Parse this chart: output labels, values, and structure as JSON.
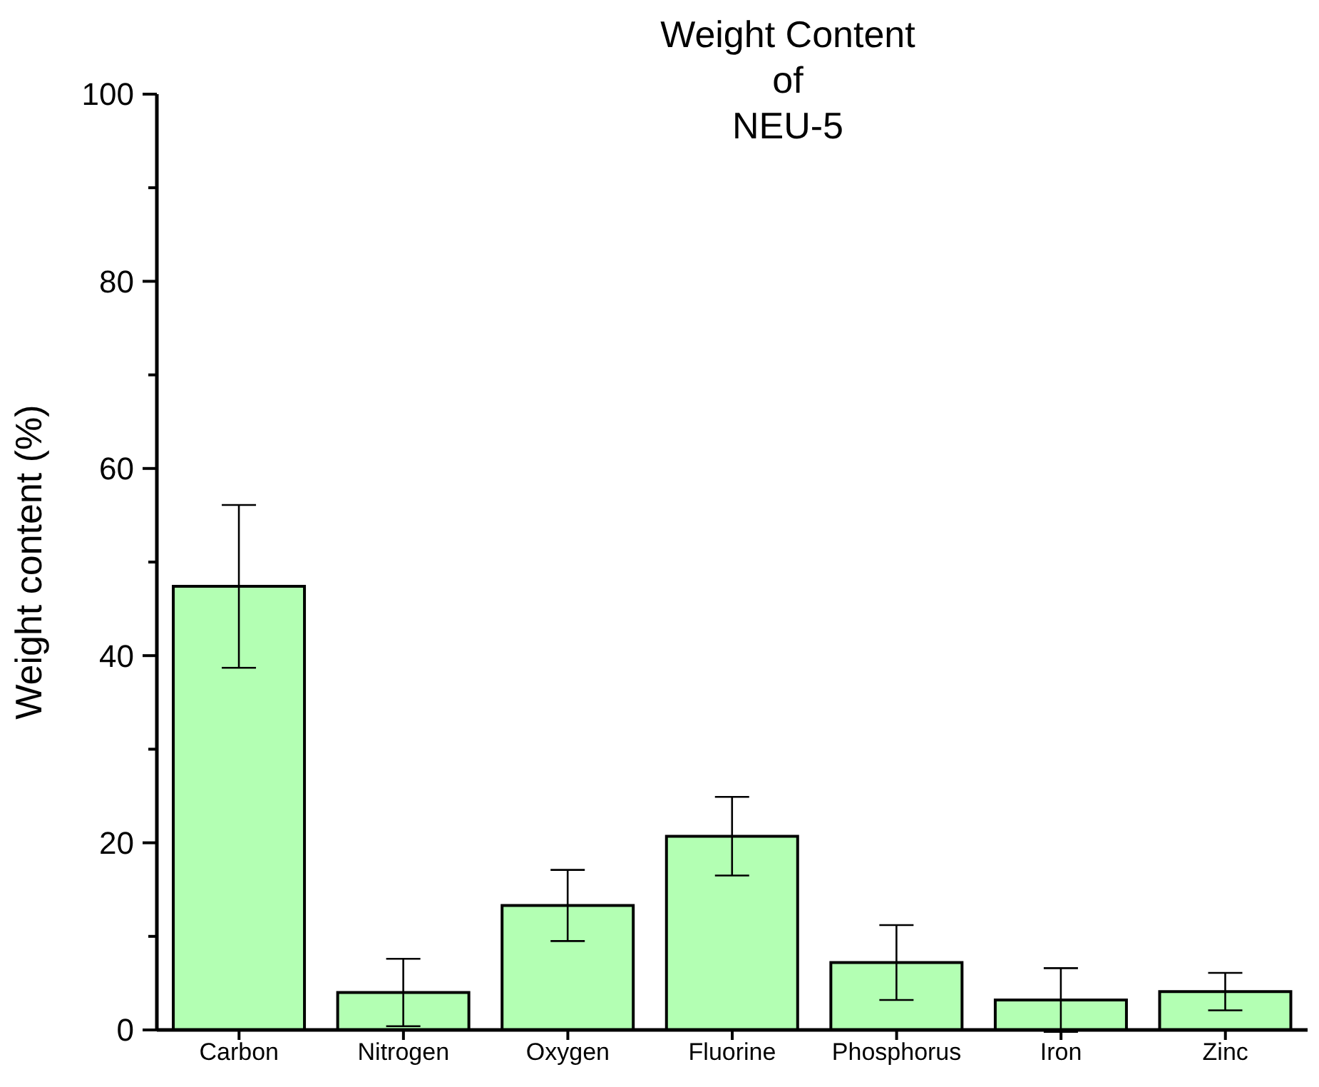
{
  "chart_data": {
    "type": "bar",
    "title": "Weight Content\nof\nNEU-5",
    "ylabel": "Weight content (%)",
    "categories": [
      "Carbon",
      "Nitrogen",
      "Oxygen",
      "Fluorine",
      "Phosphorus",
      "Iron",
      "Zinc"
    ],
    "values": [
      47.4,
      4.0,
      13.3,
      20.7,
      7.2,
      3.2,
      4.1
    ],
    "errors": [
      8.7,
      3.6,
      3.8,
      4.2,
      4.0,
      3.4,
      2.0
    ],
    "color": "#b3ffb3",
    "ylim": [
      0,
      100
    ],
    "yticks": [
      0,
      {
        "value": 10,
        "label": null
      },
      20,
      {
        "value": 30,
        "label": null
      },
      40,
      {
        "value": 50,
        "label": null
      },
      60,
      {
        "value": 70,
        "label": null
      },
      80,
      {
        "value": 90,
        "label": null
      },
      100
    ],
    "grid": false,
    "legend": false
  }
}
